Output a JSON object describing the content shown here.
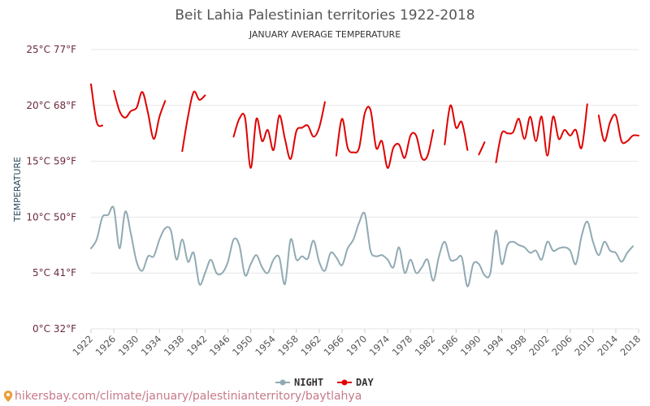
{
  "chart_data": {
    "type": "line",
    "title": "Beit Lahia Palestinian territories 1922-2018",
    "subtitle": "JANUARY AVERAGE TEMPERATURE",
    "ylabel": "TEMPERATURE",
    "ylim": [
      0,
      25
    ],
    "yticks": [
      0,
      5,
      10,
      15,
      20,
      25
    ],
    "ytick_labels": [
      "0°C 32°F",
      "5°C 41°F",
      "10°C 50°F",
      "15°C 59°F",
      "20°C 68°F",
      "25°C 77°F"
    ],
    "xlim": [
      1922,
      2018
    ],
    "xticks": [
      1922,
      1926,
      1930,
      1934,
      1938,
      1942,
      1946,
      1950,
      1954,
      1958,
      1962,
      1966,
      1970,
      1974,
      1978,
      1982,
      1986,
      1990,
      1994,
      1998,
      2002,
      2006,
      2010,
      2014,
      2018
    ],
    "series": [
      {
        "name": "NIGHT",
        "color": "#90aab3",
        "points": [
          [
            1922,
            7.2
          ],
          [
            1923,
            8
          ],
          [
            1924,
            10
          ],
          [
            1925,
            10.2
          ],
          [
            1926,
            10.8
          ],
          [
            1927,
            7.2
          ],
          [
            1928,
            10.5
          ],
          [
            1929,
            8.5
          ],
          [
            1930,
            6
          ],
          [
            1931,
            5.2
          ],
          [
            1932,
            6.5
          ],
          [
            1933,
            6.5
          ],
          [
            1934,
            8
          ],
          [
            1935,
            9
          ],
          [
            1936,
            8.8
          ],
          [
            1937,
            6.2
          ],
          [
            1938,
            8
          ],
          [
            1939,
            6
          ],
          [
            1940,
            6.8
          ],
          [
            1941,
            4
          ],
          [
            1942,
            5
          ],
          [
            1943,
            6.2
          ],
          [
            1944,
            5
          ],
          [
            1945,
            5
          ],
          [
            1946,
            6
          ],
          [
            1947,
            8
          ],
          [
            1948,
            7.5
          ],
          [
            1949,
            4.8
          ],
          [
            1950,
            5.8
          ],
          [
            1951,
            6.6
          ],
          [
            1952,
            5.5
          ],
          [
            1953,
            5
          ],
          [
            1954,
            6.2
          ],
          [
            1955,
            6.4
          ],
          [
            1956,
            4
          ],
          [
            1957,
            8
          ],
          [
            1958,
            6.2
          ],
          [
            1959,
            6.5
          ],
          [
            1960,
            6.3
          ],
          [
            1961,
            7.9
          ],
          [
            1962,
            6
          ],
          [
            1963,
            5.2
          ],
          [
            1964,
            6.8
          ],
          [
            1965,
            6.4
          ],
          [
            1966,
            5.7
          ],
          [
            1967,
            7.2
          ],
          [
            1968,
            8
          ],
          [
            1969,
            9.5
          ],
          [
            1970,
            10.3
          ],
          [
            1971,
            7
          ],
          [
            1972,
            6.5
          ],
          [
            1973,
            6.6
          ],
          [
            1974,
            6.2
          ],
          [
            1975,
            5.5
          ],
          [
            1976,
            7.3
          ],
          [
            1977,
            5
          ],
          [
            1978,
            6.2
          ],
          [
            1979,
            5
          ],
          [
            1980,
            5.5
          ],
          [
            1981,
            6.2
          ],
          [
            1982,
            4.3
          ],
          [
            1983,
            6.5
          ],
          [
            1984,
            7.8
          ],
          [
            1985,
            6.2
          ],
          [
            1986,
            6.2
          ],
          [
            1987,
            6.4
          ],
          [
            1988,
            3.8
          ],
          [
            1989,
            5.8
          ],
          [
            1990,
            5.8
          ],
          [
            1991,
            4.8
          ],
          [
            1992,
            5
          ],
          [
            1993,
            8.8
          ],
          [
            1994,
            5.8
          ],
          [
            1995,
            7.5
          ],
          [
            1996,
            7.8
          ],
          [
            1997,
            7.5
          ],
          [
            1998,
            7.3
          ],
          [
            1999,
            6.8
          ],
          [
            2000,
            7
          ],
          [
            2001,
            6.2
          ],
          [
            2002,
            7.8
          ],
          [
            2003,
            7
          ],
          [
            2004,
            7.2
          ],
          [
            2005,
            7.3
          ],
          [
            2006,
            7
          ],
          [
            2007,
            5.8
          ],
          [
            2008,
            8.3
          ],
          [
            2009,
            9.6
          ],
          [
            2010,
            7.8
          ],
          [
            2011,
            6.6
          ],
          [
            2012,
            7.8
          ],
          [
            2013,
            7
          ],
          [
            2014,
            6.8
          ],
          [
            2015,
            6
          ],
          [
            2016,
            6.8
          ],
          [
            2017,
            7.4
          ]
        ]
      },
      {
        "name": "DAY",
        "color": "#e00000",
        "segments": [
          [
            [
              1922,
              21.9
            ],
            [
              1923,
              18.5
            ],
            [
              1924,
              18.2
            ]
          ],
          [
            [
              1926,
              21.3
            ],
            [
              1927,
              19.5
            ],
            [
              1928,
              18.9
            ],
            [
              1929,
              19.5
            ],
            [
              1930,
              19.8
            ],
            [
              1931,
              21.2
            ],
            [
              1932,
              19.3
            ],
            [
              1933,
              17
            ],
            [
              1934,
              19
            ],
            [
              1935,
              20.4
            ]
          ],
          [
            [
              1938,
              15.9
            ],
            [
              1939,
              19
            ],
            [
              1940,
              21.2
            ],
            [
              1941,
              20.5
            ],
            [
              1942,
              20.9
            ]
          ],
          [
            [
              1947,
              17.2
            ],
            [
              1948,
              18.8
            ],
            [
              1949,
              18.9
            ],
            [
              1950,
              14.4
            ],
            [
              1951,
              18.8
            ],
            [
              1952,
              16.8
            ],
            [
              1953,
              17.8
            ],
            [
              1954,
              16
            ],
            [
              1955,
              19.1
            ],
            [
              1956,
              17
            ],
            [
              1957,
              15.2
            ],
            [
              1958,
              17.7
            ],
            [
              1959,
              18
            ],
            [
              1960,
              18.2
            ],
            [
              1961,
              17.2
            ],
            [
              1962,
              18
            ],
            [
              1963,
              20.3
            ]
          ],
          [
            [
              1965,
              15.5
            ],
            [
              1966,
              18.8
            ],
            [
              1967,
              16.2
            ],
            [
              1968,
              15.8
            ],
            [
              1969,
              16.2
            ],
            [
              1970,
              19.3
            ],
            [
              1971,
              19.6
            ],
            [
              1972,
              16.2
            ],
            [
              1973,
              16.8
            ],
            [
              1974,
              14.4
            ],
            [
              1975,
              16.2
            ],
            [
              1976,
              16.5
            ],
            [
              1977,
              15.3
            ],
            [
              1978,
              17.3
            ],
            [
              1979,
              17.3
            ],
            [
              1980,
              15.3
            ],
            [
              1981,
              15.5
            ],
            [
              1982,
              17.8
            ]
          ],
          [
            [
              1984,
              16.5
            ],
            [
              1985,
              20
            ],
            [
              1986,
              18
            ],
            [
              1987,
              18.5
            ],
            [
              1988,
              16
            ]
          ],
          [
            [
              1990,
              15.6
            ],
            [
              1991,
              16.7
            ]
          ],
          [
            [
              1993,
              14.9
            ],
            [
              1994,
              17.5
            ],
            [
              1995,
              17.5
            ],
            [
              1996,
              17.6
            ],
            [
              1997,
              18.8
            ],
            [
              1998,
              17
            ],
            [
              1999,
              19
            ],
            [
              2000,
              16.8
            ],
            [
              2001,
              19
            ],
            [
              2002,
              15.5
            ],
            [
              2003,
              19
            ],
            [
              2004,
              17
            ],
            [
              2005,
              17.8
            ],
            [
              2006,
              17.3
            ],
            [
              2007,
              17.8
            ],
            [
              2008,
              16.2
            ],
            [
              2009,
              20.1
            ]
          ],
          [
            [
              2011,
              19.1
            ],
            [
              2012,
              16.8
            ],
            [
              2013,
              18.5
            ],
            [
              2014,
              19.1
            ],
            [
              2015,
              16.8
            ],
            [
              2016,
              16.8
            ],
            [
              2017,
              17.3
            ],
            [
              2018,
              17.3
            ]
          ]
        ]
      }
    ],
    "legend": [
      "NIGHT",
      "DAY"
    ],
    "legend_position": "bottom-center"
  },
  "footer": {
    "source_url": "hikersbay.com/climate/january/palestinianterritory/baytlahya"
  }
}
